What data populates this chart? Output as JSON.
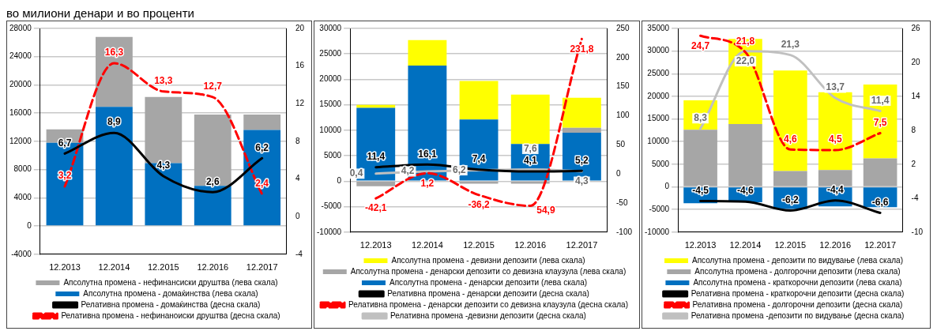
{
  "chart_data": [
    {
      "type": "bar",
      "title": "во милиони денари и во проценти",
      "categories": [
        "12.2013",
        "12.2014",
        "12.2015",
        "12.2016",
        "12.2017"
      ],
      "stacked": true,
      "grid": "y",
      "legend": "bottom",
      "marker": "none",
      "ylim": [
        -4000,
        28000
      ],
      "yticks": [
        -4000,
        0,
        4000,
        8000,
        12000,
        16000,
        20000,
        24000,
        28000
      ],
      "y2lim": [
        -4,
        20
      ],
      "y2ticks": [
        -4,
        0,
        4,
        8,
        12,
        16,
        20
      ],
      "series": [
        {
          "name": "Апсолутна промена - домаќинства (лева скала)",
          "color": "#0070c0",
          "values": [
            11800,
            16900,
            8900,
            5700,
            13600
          ]
        },
        {
          "name": "Апсолутна промена - нефинансиски друштва (лева скала)",
          "color": "#a6a6a6",
          "values": [
            1900,
            9900,
            9400,
            10100,
            2200
          ]
        },
        {
          "name": "Релативна промена - домаќинства (десна скала)",
          "type": "line",
          "axis": "y2",
          "line_style": "solid",
          "color": "#000000",
          "values": [
            6.7,
            8.9,
            4.3,
            2.6,
            6.2
          ],
          "value_labels": [
            "6,7",
            "8,9",
            "4,3",
            "2,6",
            "6,2"
          ]
        },
        {
          "name": "Релативна промена - нефинаноиски друштва (десна скала)",
          "type": "line",
          "axis": "y2",
          "line_style": "dashed",
          "color": "#ff0000",
          "values": [
            3.2,
            16.3,
            13.3,
            12.7,
            2.4
          ],
          "value_labels": [
            "3,2",
            "16,3",
            "13,3",
            "12,7",
            "2,4"
          ]
        }
      ]
    },
    {
      "type": "bar",
      "annotations": [
        {
          "text": "54,9",
          "x": "12.2016",
          "y": -54.9
        }
      ],
      "categories": [
        "12.2013",
        "12.2014",
        "12.2015",
        "12.2016",
        "12.2017"
      ],
      "stacked": true,
      "grid": "y",
      "legend": "bottom",
      "marker": "none",
      "ylim": [
        -10000,
        30000
      ],
      "yticks": [
        -10000,
        -5000,
        0,
        5000,
        10000,
        15000,
        20000,
        25000,
        30000
      ],
      "y2lim": [
        -100,
        250
      ],
      "y2ticks": [
        -100,
        -50,
        0,
        50,
        100,
        150,
        200,
        250
      ],
      "series": [
        {
          "name": "Апсолутна промена - денарски депозити (лева скала)",
          "color": "#0070c0",
          "values": [
            14400,
            22700,
            12100,
            7300,
            9500
          ]
        },
        {
          "name": "Апсолутна промена - денарски депозити со девизна клаузула (лева скала)",
          "color": "#a6a6a6",
          "values": [
            -1000,
            0,
            -500,
            -500,
            1000
          ]
        },
        {
          "name": "Апсолутна промена - девизни депозити (лева скала)",
          "color": "#ffff00",
          "values": [
            600,
            5000,
            7600,
            9700,
            5900
          ]
        },
        {
          "name": "Релативна промена - денарски депозити (десна скала)",
          "type": "line",
          "axis": "y2",
          "line_style": "solid",
          "color": "#000000",
          "values": [
            11.4,
            16.1,
            7.4,
            4.1,
            5.2
          ],
          "value_labels": [
            "11,4",
            "16,1",
            "7,4",
            "4,1",
            "5,2"
          ]
        },
        {
          "name": "Релативна промена - денарски депозити со девизна клаузула (десна скала)",
          "type": "line",
          "axis": "y2",
          "line_style": "dashed",
          "color": "#ff0000",
          "values": [
            -42.1,
            1.2,
            -36.2,
            -54.9,
            231.8
          ],
          "value_labels": [
            "-42,1",
            "1,2",
            "-36,2",
            null,
            "231,8"
          ]
        },
        {
          "name": "Релативна промена -девизни депозити (десна скала)",
          "type": "line",
          "axis": "y2",
          "line_style": "solid",
          "color": "#c0c0c0",
          "values": [
            0.4,
            4.2,
            6.2,
            7.6,
            4.3
          ],
          "value_labels": [
            "0,4",
            "4,2",
            "6,2",
            "7,6",
            "4,3"
          ]
        }
      ]
    },
    {
      "type": "bar",
      "categories": [
        "12.2013",
        "12.2014",
        "12.2015",
        "12.2016",
        "12.2017"
      ],
      "stacked": true,
      "grid": "y",
      "legend": "bottom",
      "marker": "none",
      "ylim": [
        -10000,
        35000
      ],
      "yticks": [
        -10000,
        -5000,
        0,
        5000,
        10000,
        15000,
        20000,
        25000,
        30000,
        35000
      ],
      "y2lim": [
        -10,
        26
      ],
      "y2ticks": [
        -10,
        -4,
        2,
        8,
        14,
        20,
        26
      ],
      "series": [
        {
          "name": "Апсолутна промена - краткорочни депозити (лева скала)",
          "color": "#0070c0",
          "values": [
            -3600,
            -3400,
            -4900,
            -4300,
            -4500
          ]
        },
        {
          "name": "Апсолутна промена - долгорочни депозити (лева скала)",
          "color": "#a6a6a6",
          "values": [
            12600,
            13900,
            3500,
            3700,
            6300
          ]
        },
        {
          "name": "Апсолутна промена - депозити по видување (лева скала)",
          "color": "#ffff00",
          "values": [
            6500,
            18800,
            22200,
            17200,
            16300
          ]
        },
        {
          "name": "Релативна промена - краткорочни депозити (десна скала)",
          "type": "line",
          "axis": "y2",
          "line_style": "solid",
          "color": "#000000",
          "values": [
            -4.5,
            -4.6,
            -6.2,
            -4.4,
            -6.6
          ],
          "value_labels": [
            "-4,5",
            "-4,6",
            "-6,2",
            "-4,4",
            "-6,6"
          ]
        },
        {
          "name": "Релативна промена - долгорочни депозити (десна скала)",
          "type": "line",
          "axis": "y2",
          "line_style": "dashed",
          "color": "#ff0000",
          "values": [
            24.7,
            21.8,
            4.6,
            4.5,
            7.5
          ],
          "value_labels": [
            "24,7",
            "21,8",
            "4,6",
            "4,5",
            "7,5"
          ]
        },
        {
          "name": "Релативна промена -депозити по видување (десна скала)",
          "type": "line",
          "axis": "y2",
          "line_style": "solid",
          "color": "#c0c0c0",
          "values": [
            8.3,
            22.0,
            21.3,
            13.7,
            11.4
          ],
          "value_labels": [
            "8,3",
            "22,0",
            "21,3",
            "13,7",
            "11,4"
          ]
        }
      ]
    }
  ]
}
